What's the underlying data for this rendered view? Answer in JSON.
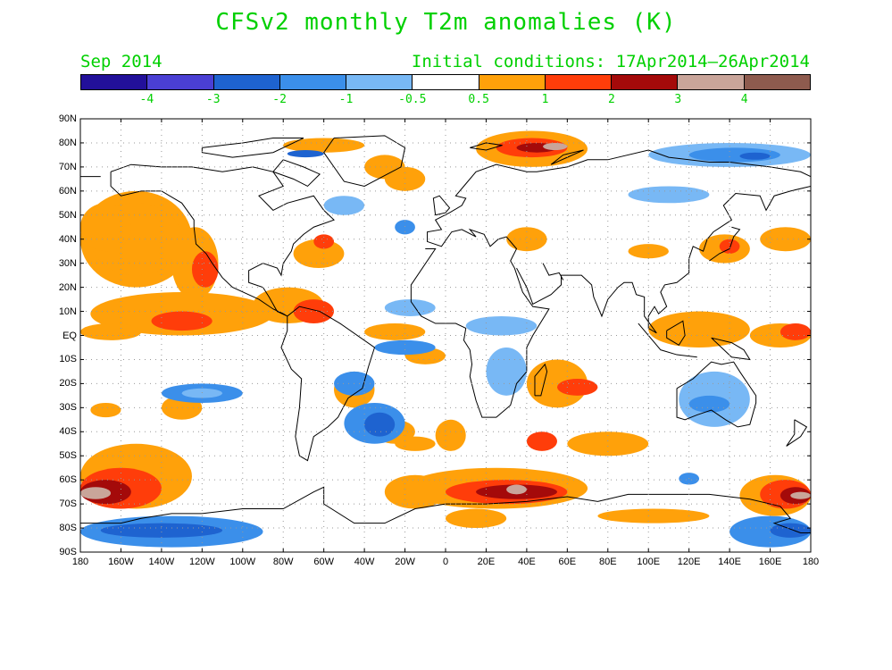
{
  "title": "CFSv2 monthly T2m anomalies (K)",
  "forecast_month": "Sep 2014",
  "initial_conditions": "Initial conditions: 17Apr2014–26Apr2014",
  "colorbar": {
    "colors": [
      "#22109a",
      "#4a3fd4",
      "#1e63d0",
      "#3b8fea",
      "#78b8f5",
      "#ffffff",
      "#ffa10a",
      "#ff3d0a",
      "#a40a0a",
      "#c9a59a",
      "#8e5b4e"
    ],
    "labels": [
      "-4",
      "-3",
      "-2",
      "-1",
      "-0.5",
      "0.5",
      "1",
      "2",
      "3",
      "4"
    ]
  },
  "lat_labels": [
    "90N",
    "80N",
    "70N",
    "60N",
    "50N",
    "40N",
    "30N",
    "20N",
    "10N",
    "EQ",
    "10S",
    "20S",
    "30S",
    "40S",
    "50S",
    "60S",
    "70S",
    "80S",
    "90S"
  ],
  "lon_labels": [
    "180",
    "160W",
    "140W",
    "120W",
    "100W",
    "80W",
    "60W",
    "40W",
    "20W",
    "0",
    "20E",
    "40E",
    "60E",
    "80E",
    "100E",
    "120E",
    "140E",
    "160E",
    "180"
  ],
  "anomaly_regions": [
    {
      "name": "NE Pacific warm",
      "lon": -140,
      "lat": 42,
      "level": 1
    },
    {
      "name": "Baja coast warm core",
      "lon": -117,
      "lat": 27,
      "level": 2
    },
    {
      "name": "East Pacific warm core",
      "lon": -130,
      "lat": 8,
      "level": 2
    },
    {
      "name": "Barents-Kara warm",
      "lon": 55,
      "lat": 77,
      "level": 3
    },
    {
      "name": "Siberian Arctic cold",
      "lon": 140,
      "lat": 74,
      "level": -2
    },
    {
      "name": "Southern Ocean warm (Indian sector)",
      "lon": 50,
      "lat": -62,
      "level": 3
    },
    {
      "name": "Ross Sea warm",
      "lon": -165,
      "lat": -67,
      "level": 3
    },
    {
      "name": "Antarctic coast cold",
      "lon": -150,
      "lat": -80,
      "level": -2
    },
    {
      "name": "Australia cool",
      "lon": 133,
      "lat": -25,
      "level": -0.5
    },
    {
      "name": "South Atlantic cool",
      "lon": -30,
      "lat": -37,
      "level": -1
    }
  ]
}
